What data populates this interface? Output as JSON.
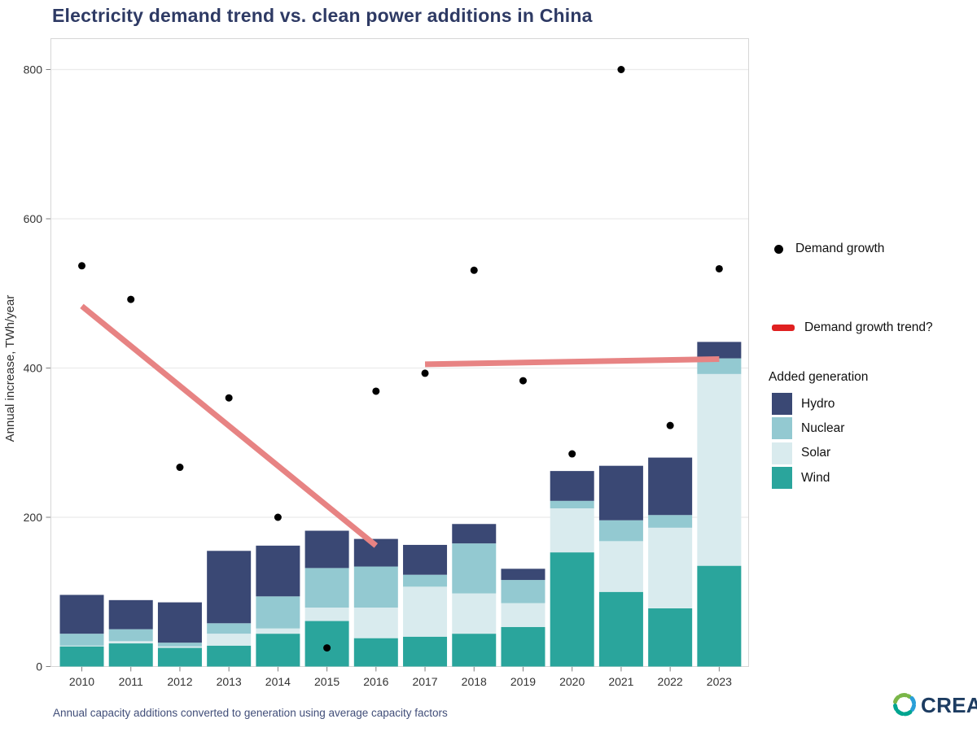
{
  "title": "Electricity demand trend vs. clean power additions in China",
  "caption": "Annual capacity additions converted to generation using average capacity factors",
  "brand": {
    "name": "CREA"
  },
  "colors": {
    "title": "#2e3a64",
    "caption": "#414e79",
    "hydro": "#3a4874",
    "nuclear": "#93c9d1",
    "solar": "#d9ebee",
    "wind": "#2aa59c",
    "demand_dot": "#000000",
    "trend_line": "#e78383",
    "trend_key": "#e02020",
    "panel_border": "#d6d6d6",
    "gridline": "#ebebeb",
    "tick": "#808080",
    "tick_text": "#333333",
    "axis_title_text": "#303030",
    "logo_text": "#1d3c61",
    "logo_arc_green": "#7ab648",
    "logo_arc_blue": "#2a9fd8",
    "logo_arc_teal": "#00a590"
  },
  "legend": {
    "demand_growth_label": "Demand growth",
    "trend_label": "Demand growth trend?",
    "added_generation_title": "Added generation",
    "items": [
      {
        "label": "Hydro",
        "color": "#3a4874"
      },
      {
        "label": "Nuclear",
        "color": "#93c9d1"
      },
      {
        "label": "Solar",
        "color": "#d9ebee"
      },
      {
        "label": "Wind",
        "color": "#2aa59c"
      }
    ]
  },
  "chart_data": {
    "type": "combo",
    "subtypes": [
      "stacked-bar",
      "scatter",
      "line"
    ],
    "title": "Electricity demand trend vs. clean power additions in China",
    "xlabel": "",
    "ylabel": "Annual increase, TWh/year",
    "units": "TWh/year",
    "ylim": [
      0,
      800
    ],
    "yticks": [
      0,
      200,
      400,
      600,
      800
    ],
    "grid": "horizontal-major-only",
    "legend_position": "right",
    "categories": [
      "2010",
      "2011",
      "2012",
      "2013",
      "2014",
      "2015",
      "2016",
      "2017",
      "2018",
      "2019",
      "2020",
      "2021",
      "2022",
      "2023"
    ],
    "stacked_bar_series_bottom_to_top": [
      {
        "name": "Wind",
        "color": "#2aa59c",
        "values": [
          27,
          31,
          25,
          28,
          44,
          61,
          38,
          40,
          44,
          53,
          153,
          100,
          78,
          135
        ]
      },
      {
        "name": "Solar",
        "color": "#d9ebee",
        "values": [
          1,
          3,
          2,
          16,
          7,
          18,
          41,
          67,
          54,
          32,
          59,
          68,
          108,
          257
        ]
      },
      {
        "name": "Nuclear",
        "color": "#93c9d1",
        "values": [
          16,
          16,
          5,
          14,
          43,
          53,
          55,
          16,
          67,
          31,
          10,
          28,
          17,
          21
        ]
      },
      {
        "name": "Hydro",
        "color": "#3a4874",
        "values": [
          52,
          39,
          54,
          97,
          68,
          50,
          37,
          40,
          26,
          15,
          40,
          73,
          77,
          22
        ]
      }
    ],
    "bar_totals": [
      96,
      89,
      86,
      155,
      162,
      182,
      171,
      163,
      191,
      131,
      262,
      269,
      280,
      435
    ],
    "scatter_series": {
      "name": "Demand growth",
      "color": "#000000",
      "values": [
        537,
        492,
        267,
        360,
        200,
        25,
        369,
        393,
        531,
        383,
        285,
        800,
        323,
        533
      ]
    },
    "trend_segments": [
      {
        "name": "Demand growth trend?",
        "x_years": [
          "2010",
          "2016"
        ],
        "y_values": [
          483,
          162
        ]
      },
      {
        "name": "Demand growth trend?",
        "x_years": [
          "2017",
          "2023"
        ],
        "y_values": [
          405,
          412
        ]
      }
    ]
  }
}
